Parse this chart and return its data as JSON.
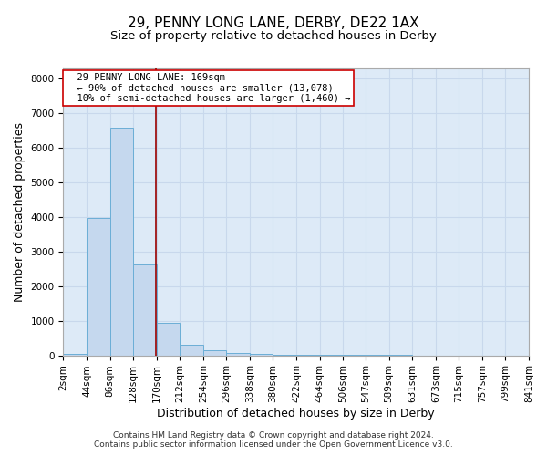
{
  "title_line1": "29, PENNY LONG LANE, DERBY, DE22 1AX",
  "title_line2": "Size of property relative to detached houses in Derby",
  "xlabel": "Distribution of detached houses by size in Derby",
  "ylabel": "Number of detached properties",
  "bin_edges": [
    2,
    44,
    86,
    128,
    170,
    212,
    254,
    296,
    338,
    380,
    422,
    464,
    506,
    547,
    589,
    631,
    673,
    715,
    757,
    799,
    841
  ],
  "bin_counts": [
    50,
    3980,
    6580,
    2620,
    950,
    310,
    140,
    80,
    30,
    15,
    10,
    5,
    5,
    3,
    3,
    2,
    2,
    1,
    1,
    1
  ],
  "bar_color": "#c5d8ee",
  "bar_edge_color": "#6baed6",
  "property_size": 169,
  "vline_color": "#990000",
  "annotation_text": "  29 PENNY LONG LANE: 169sqm\n  ← 90% of detached houses are smaller (13,078)\n  10% of semi-detached houses are larger (1,460) →",
  "annotation_box_color": "#ffffff",
  "annotation_border_color": "#cc0000",
  "ylim": [
    0,
    8300
  ],
  "yticks": [
    0,
    1000,
    2000,
    3000,
    4000,
    5000,
    6000,
    7000,
    8000
  ],
  "grid_color": "#c8d8ec",
  "background_color": "#ddeaf7",
  "footer_line1": "Contains HM Land Registry data © Crown copyright and database right 2024.",
  "footer_line2": "Contains public sector information licensed under the Open Government Licence v3.0.",
  "title_fontsize": 11,
  "subtitle_fontsize": 9.5,
  "axis_label_fontsize": 9,
  "tick_fontsize": 7.5,
  "annotation_fontsize": 7.5,
  "footer_fontsize": 6.5
}
